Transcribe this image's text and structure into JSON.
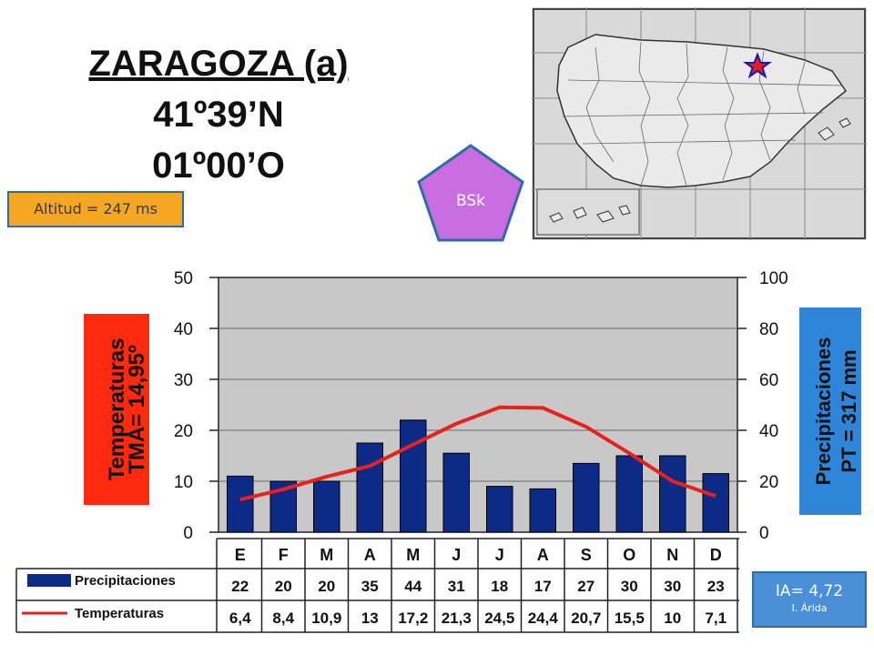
{
  "header": {
    "station": "ZARAGOZA (a)",
    "latitude": "41º39’N",
    "longitude": "01º00’O"
  },
  "altitude_label": "Altitud = 247 ms",
  "climate_badge": {
    "label": "BSk",
    "color": "#c86ee0"
  },
  "aridity": {
    "index": "IA= 4,72",
    "class": "I. Árida"
  },
  "colors": {
    "bar": "#0d2a86",
    "line": "#e8211d",
    "plot_bg": "#c8c8c8",
    "temp_box": "#ff2a10",
    "precip_box": "#2f86d8"
  },
  "chart_data": {
    "type": "bar+line",
    "categories": [
      "E",
      "F",
      "M",
      "A",
      "M",
      "J",
      "J",
      "A",
      "S",
      "O",
      "N",
      "D"
    ],
    "series": [
      {
        "name": "Precipitaciones",
        "values": [
          22,
          20,
          20,
          35,
          44,
          31,
          18,
          17,
          27,
          30,
          30,
          23
        ],
        "axis": "right",
        "kind": "bar"
      },
      {
        "name": "Temperaturas",
        "values": [
          6.4,
          8.4,
          10.9,
          13,
          17.2,
          21.3,
          24.5,
          24.4,
          20.7,
          15.5,
          10,
          7.1
        ],
        "axis": "left",
        "kind": "line"
      }
    ],
    "table_rows": [
      [
        "22",
        "20",
        "20",
        "35",
        "44",
        "31",
        "18",
        "17",
        "27",
        "30",
        "30",
        "23"
      ],
      [
        "6,4",
        "8,4",
        "10,9",
        "13",
        "17,2",
        "21,3",
        "24,5",
        "24,4",
        "20,7",
        "15,5",
        "10",
        "7,1"
      ]
    ],
    "ylim_left": [
      0,
      50
    ],
    "ylim_right": [
      0,
      100
    ],
    "left_ticks": [
      "0",
      "10",
      "20",
      "30",
      "40",
      "50"
    ],
    "right_ticks": [
      "0",
      "20",
      "40",
      "60",
      "80",
      "100"
    ],
    "left_label_line1": "Temperaturas",
    "left_label_line2": "TMA= 14,95º",
    "right_label_line1": "Precipitaciones",
    "right_label_line2": "PT = 317 mm"
  }
}
